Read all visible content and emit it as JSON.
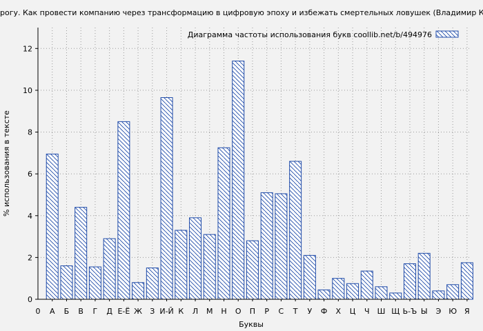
{
  "chart_data": {
    "type": "bar",
    "title": "рогу. Как провести компанию через трансформацию в цифровую эпоху и избежать смертельных ловушек (Владимир Коров",
    "legend": "Диаграмма частоты использования букв  coollib.net/b/494976",
    "xlabel": "Буквы",
    "ylabel": "% использования в тексте",
    "ylim": [
      0,
      13
    ],
    "yticks": [
      0,
      2,
      4,
      6,
      8,
      10,
      12
    ],
    "x_axis_origin_label": "0",
    "grid": true,
    "legend_position": "top-right",
    "categories": [
      "А",
      "Б",
      "В",
      "Г",
      "Д",
      "Е-Ё",
      "Ж",
      "З",
      "И-Й",
      "К",
      "Л",
      "М",
      "Н",
      "О",
      "П",
      "Р",
      "С",
      "Т",
      "У",
      "Ф",
      "Х",
      "Ц",
      "Ч",
      "Ш",
      "Щ",
      "Ь-Ъ",
      "Ы",
      "Э",
      "Ю",
      "Я"
    ],
    "values": [
      6.95,
      1.6,
      4.4,
      1.55,
      2.9,
      8.5,
      0.8,
      1.5,
      9.65,
      3.3,
      3.9,
      3.1,
      7.25,
      11.4,
      2.8,
      5.1,
      5.05,
      6.6,
      2.1,
      0.45,
      1.0,
      0.75,
      1.35,
      0.6,
      0.3,
      1.7,
      2.2,
      0.4,
      0.7,
      1.75
    ],
    "colors": {
      "bar_stroke": "#1e4aa8",
      "hatch": "#1e4aa8",
      "bar_fill": "#ffffff",
      "grid": "#999999",
      "background": "#f2f2f2"
    }
  }
}
